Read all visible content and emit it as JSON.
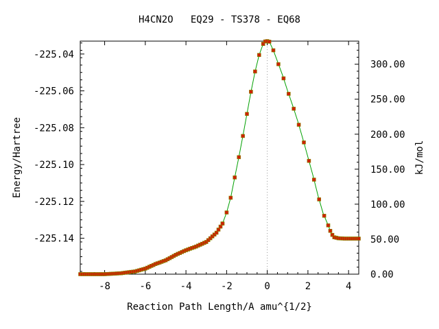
{
  "chart_data": {
    "type": "line",
    "title": "H4CN2O   EQ29 - TS378 - EQ68",
    "xlabel": "Reaction Path Length/A amu^{1/2}",
    "ylabel": "Energy/Hartree",
    "y2label": "kJ/mol",
    "xlim": [
      -9.2,
      4.5
    ],
    "ylim": [
      -225.1595,
      -225.033
    ],
    "y2lim": [
      0,
      333
    ],
    "x_ticks": [
      -8,
      -6,
      -4,
      -2,
      0,
      2,
      4
    ],
    "x_tick_labels": [
      "-8",
      "-6",
      "-4",
      "-2",
      "0",
      "2",
      "4"
    ],
    "y_ticks": [
      -225.04,
      -225.06,
      -225.08,
      -225.1,
      -225.12,
      -225.14
    ],
    "y_tick_labels": [
      "-225.04",
      "-225.06",
      "-225.08",
      "-225.10",
      "-225.12",
      "-225.14"
    ],
    "y2_ticks": [
      0,
      50,
      100,
      150,
      200,
      250,
      300
    ],
    "y2_tick_labels": [
      "0.00",
      "50.00",
      "100.00",
      "150.00",
      "200.00",
      "250.00",
      "300.00"
    ],
    "ts_marker_x": 0,
    "grid": false,
    "colors": {
      "line": "#00a000",
      "marker": "#cc2200",
      "marker_edge": "#888800",
      "ts_line": "#999999"
    },
    "series": [
      {
        "x": [
          -9.2,
          -8.0,
          -7.2,
          -6.5,
          -6.0,
          -5.5,
          -5.0,
          -4.5,
          -4.0,
          -3.5,
          -3.0,
          -2.5,
          -2.2,
          -2.0,
          -1.8,
          -1.6,
          -1.4,
          -1.2,
          -1.0,
          -0.8,
          -0.6,
          -0.4,
          -0.2,
          -0.1,
          0.0,
          0.1,
          0.3,
          0.5,
          0.75,
          1.0,
          1.25,
          1.5,
          1.75,
          2.0,
          2.25,
          2.5,
          2.75,
          3.0,
          3.15,
          3.3,
          3.5,
          3.8,
          4.2,
          4.5
        ],
        "y": [
          -225.1595,
          -225.1595,
          -225.159,
          -225.158,
          -225.1565,
          -225.154,
          -225.152,
          -225.149,
          -225.1465,
          -225.1445,
          -225.142,
          -225.137,
          -225.132,
          -225.126,
          -225.118,
          -225.107,
          -225.096,
          -225.0845,
          -225.0725,
          -225.0605,
          -225.0495,
          -225.0405,
          -225.0345,
          -225.0332,
          -225.033,
          -225.0333,
          -225.038,
          -225.044,
          -225.0515,
          -225.06,
          -225.068,
          -225.0765,
          -225.086,
          -225.096,
          -225.106,
          -225.117,
          -225.1265,
          -225.133,
          -225.1375,
          -225.1395,
          -225.14,
          -225.1402,
          -225.1402,
          -225.1402
        ]
      }
    ]
  }
}
